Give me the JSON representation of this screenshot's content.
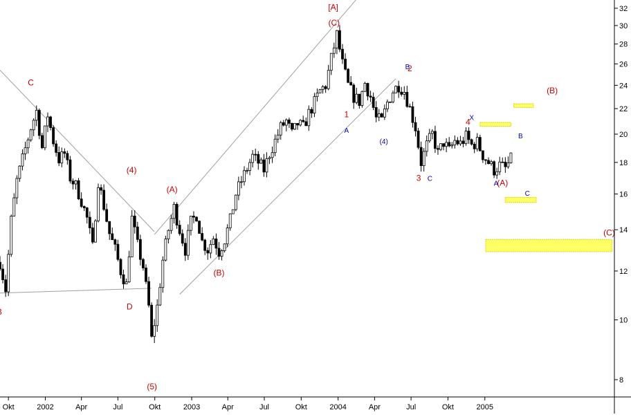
{
  "chart_data": {
    "type": "candlestick",
    "y_scale": "log",
    "ylim": [
      7.5,
      33
    ],
    "y_ticks": [
      8,
      10,
      12,
      14,
      16,
      18,
      20,
      22,
      24,
      26,
      28,
      30,
      32
    ],
    "x_range": [
      "2001-09-10",
      "2005-11-20"
    ],
    "x_ticks": [
      {
        "label": "Okt",
        "date": "2001-10-01"
      },
      {
        "label": "2002",
        "date": "2002-01-01"
      },
      {
        "label": "Apr",
        "date": "2002-04-01"
      },
      {
        "label": "Jul",
        "date": "2002-07-01"
      },
      {
        "label": "Okt",
        "date": "2002-10-01"
      },
      {
        "label": "2003",
        "date": "2003-01-01"
      },
      {
        "label": "Apr",
        "date": "2003-04-01"
      },
      {
        "label": "Jul",
        "date": "2003-07-01"
      },
      {
        "label": "Okt",
        "date": "2003-10-01"
      },
      {
        "label": "2004",
        "date": "2004-01-01"
      },
      {
        "label": "Apr",
        "date": "2004-04-01"
      },
      {
        "label": "Jul",
        "date": "2004-07-01"
      },
      {
        "label": "Okt",
        "date": "2004-10-01"
      },
      {
        "label": "2005",
        "date": "2005-01-01"
      }
    ],
    "price_path": [
      [
        "2001-09-10",
        12.4
      ],
      [
        "2001-09-24",
        11.2
      ],
      [
        "2001-10-08",
        14.5
      ],
      [
        "2001-10-22",
        16.8
      ],
      [
        "2001-11-05",
        18.2
      ],
      [
        "2001-11-26",
        20.5
      ],
      [
        "2001-12-10",
        21.8
      ],
      [
        "2001-12-24",
        19.0
      ],
      [
        "2002-01-07",
        21.5
      ],
      [
        "2002-01-21",
        19.5
      ],
      [
        "2002-02-04",
        18.2
      ],
      [
        "2002-02-18",
        18.6
      ],
      [
        "2002-03-04",
        17.0
      ],
      [
        "2002-03-18",
        16.5
      ],
      [
        "2002-04-01",
        15.6
      ],
      [
        "2002-04-15",
        14.6
      ],
      [
        "2002-04-29",
        13.1
      ],
      [
        "2002-05-13",
        16.8
      ],
      [
        "2002-05-27",
        15.3
      ],
      [
        "2002-06-10",
        13.8
      ],
      [
        "2002-06-24",
        13.0
      ],
      [
        "2002-07-08",
        12.0
      ],
      [
        "2002-07-22",
        11.4
      ],
      [
        "2002-08-05",
        14.6
      ],
      [
        "2002-08-19",
        13.2
      ],
      [
        "2002-09-02",
        12.2
      ],
      [
        "2002-09-16",
        10.5
      ],
      [
        "2002-09-23",
        9.3
      ],
      [
        "2002-10-07",
        10.5
      ],
      [
        "2002-10-21",
        12.5
      ],
      [
        "2002-11-04",
        14.0
      ],
      [
        "2002-11-18",
        15.2
      ],
      [
        "2002-12-02",
        14.0
      ],
      [
        "2002-12-16",
        13.0
      ],
      [
        "2002-12-30",
        14.4
      ],
      [
        "2003-01-13",
        14.8
      ],
      [
        "2003-01-27",
        13.4
      ],
      [
        "2003-02-10",
        13.0
      ],
      [
        "2003-02-24",
        13.6
      ],
      [
        "2003-03-10",
        12.9
      ],
      [
        "2003-03-24",
        13.5
      ],
      [
        "2003-04-07",
        14.5
      ],
      [
        "2003-04-21",
        16.0
      ],
      [
        "2003-05-05",
        16.8
      ],
      [
        "2003-05-19",
        17.6
      ],
      [
        "2003-06-02",
        18.4
      ],
      [
        "2003-06-16",
        18.0
      ],
      [
        "2003-06-30",
        17.5
      ],
      [
        "2003-07-14",
        18.6
      ],
      [
        "2003-07-28",
        19.5
      ],
      [
        "2003-08-11",
        20.5
      ],
      [
        "2003-08-25",
        21.0
      ],
      [
        "2003-09-08",
        20.0
      ],
      [
        "2003-09-22",
        20.8
      ],
      [
        "2003-10-06",
        20.5
      ],
      [
        "2003-10-20",
        21.6
      ],
      [
        "2003-11-03",
        22.5
      ],
      [
        "2003-11-17",
        23.5
      ],
      [
        "2003-12-01",
        24.0
      ],
      [
        "2003-12-15",
        26.5
      ],
      [
        "2003-12-29",
        29.0
      ],
      [
        "2004-01-12",
        26.0
      ],
      [
        "2004-01-26",
        24.0
      ],
      [
        "2004-02-09",
        23.0
      ],
      [
        "2004-02-23",
        22.6
      ],
      [
        "2004-03-08",
        24.2
      ],
      [
        "2004-03-22",
        23.0
      ],
      [
        "2004-04-05",
        21.2
      ],
      [
        "2004-04-19",
        21.0
      ],
      [
        "2004-05-03",
        22.5
      ],
      [
        "2004-05-17",
        23.5
      ],
      [
        "2004-05-31",
        24.0
      ],
      [
        "2004-06-14",
        23.5
      ],
      [
        "2004-06-28",
        22.0
      ],
      [
        "2004-07-12",
        20.5
      ],
      [
        "2004-07-26",
        18.0
      ],
      [
        "2004-08-09",
        19.2
      ],
      [
        "2004-08-23",
        20.0
      ],
      [
        "2004-09-06",
        18.6
      ],
      [
        "2004-09-20",
        19.4
      ],
      [
        "2004-10-04",
        18.8
      ],
      [
        "2004-10-18",
        19.5
      ],
      [
        "2004-11-01",
        19.3
      ],
      [
        "2004-11-15",
        19.8
      ],
      [
        "2004-11-29",
        19.2
      ],
      [
        "2004-12-13",
        19.4
      ],
      [
        "2004-12-27",
        18.5
      ],
      [
        "2005-01-10",
        18.0
      ],
      [
        "2005-01-24",
        17.5
      ],
      [
        "2005-02-07",
        17.8
      ],
      [
        "2005-02-21",
        17.6
      ],
      [
        "2005-03-07",
        18.2
      ]
    ],
    "lines": [
      {
        "from": [
          "2001-09-03",
          11.05
        ],
        "to": [
          "2002-09-23",
          11.25
        ]
      },
      {
        "from": [
          "2001-09-10",
          25.4
        ],
        "to": [
          "2002-09-30",
          13.9
        ]
      },
      {
        "from": [
          "2002-09-30",
          13.75
        ],
        "to": [
          "2004-02-23",
          33.5
        ]
      },
      {
        "from": [
          "2002-12-02",
          11.0
        ],
        "to": [
          "2004-05-24",
          24.6
        ]
      }
    ],
    "target_zones": [
      {
        "x": [
          "2004-12-20",
          "2005-03-07"
        ],
        "y": [
          20.6,
          20.9
        ]
      },
      {
        "x": [
          "2005-03-14",
          "2005-05-02"
        ],
        "y": [
          22.1,
          22.4
        ]
      },
      {
        "x": [
          "2005-02-21",
          "2005-05-09"
        ],
        "y": [
          15.5,
          15.8
        ]
      },
      {
        "x": [
          "2005-01-03",
          "2005-11-14"
        ],
        "y": [
          12.9,
          13.5
        ]
      }
    ],
    "annotations": [
      {
        "text": "[A]",
        "x": "2003-12-20",
        "y": 31.8,
        "color": "red"
      },
      {
        "text": "(C)",
        "x": "2003-12-22",
        "y": 30.0,
        "color": "red"
      },
      {
        "text": "C",
        "x": "2001-11-26",
        "y": 24.0,
        "color": "red"
      },
      {
        "text": "B",
        "x": "2001-09-08",
        "y": 10.2,
        "color": "red"
      },
      {
        "text": "D",
        "x": "2002-07-30",
        "y": 10.4,
        "color": "red"
      },
      {
        "text": "(4)",
        "x": "2002-08-04",
        "y": 17.3,
        "color": "red"
      },
      {
        "text": "(A)",
        "x": "2002-11-13",
        "y": 16.1,
        "color": "red"
      },
      {
        "text": "(5)",
        "x": "2002-09-24",
        "y": 7.72,
        "color": "red"
      },
      {
        "text": "(B)",
        "x": "2003-03-10",
        "y": 11.8,
        "color": "red"
      },
      {
        "text": "1",
        "x": "2004-01-22",
        "y": 21.3,
        "color": "red"
      },
      {
        "text": "2",
        "x": "2004-06-28",
        "y": 25.3,
        "color": "red"
      },
      {
        "text": "3",
        "x": "2004-07-20",
        "y": 16.8,
        "color": "red"
      },
      {
        "text": "4",
        "x": "2004-11-20",
        "y": 20.7,
        "color": "red"
      },
      {
        "text": "(A)",
        "x": "2005-02-14",
        "y": 16.5,
        "color": "red"
      },
      {
        "text": "(B)",
        "x": "2005-06-18",
        "y": 23.3,
        "color": "red"
      },
      {
        "text": "(C)",
        "x": "2005-11-07",
        "y": 13.7,
        "color": "red"
      },
      {
        "text": "A",
        "x": "2004-01-22",
        "y": 20.1,
        "color": "blue"
      },
      {
        "text": "B",
        "x": "2004-06-22",
        "y": 25.5,
        "color": "blue"
      },
      {
        "text": "(4)",
        "x": "2004-04-24",
        "y": 19.3,
        "color": "blue"
      },
      {
        "text": "C",
        "x": "2004-08-17",
        "y": 16.8,
        "color": "blue"
      },
      {
        "text": "X",
        "x": "2004-11-29",
        "y": 21.1,
        "color": "blue"
      },
      {
        "text": "A",
        "x": "2005-01-29",
        "y": 16.5,
        "color": "blue"
      },
      {
        "text": "B",
        "x": "2005-03-31",
        "y": 19.7,
        "color": "blue"
      },
      {
        "text": "C",
        "x": "2005-04-17",
        "y": 15.9,
        "color": "blue"
      }
    ],
    "colors": {
      "red_label": "#cc0000",
      "blue_label": "#0000bb",
      "trendline": "#a0a0a0",
      "zone_fill": "#ffff66",
      "zone_edge": "#d8d800",
      "axis": "#000000",
      "candle": "#000000"
    }
  }
}
